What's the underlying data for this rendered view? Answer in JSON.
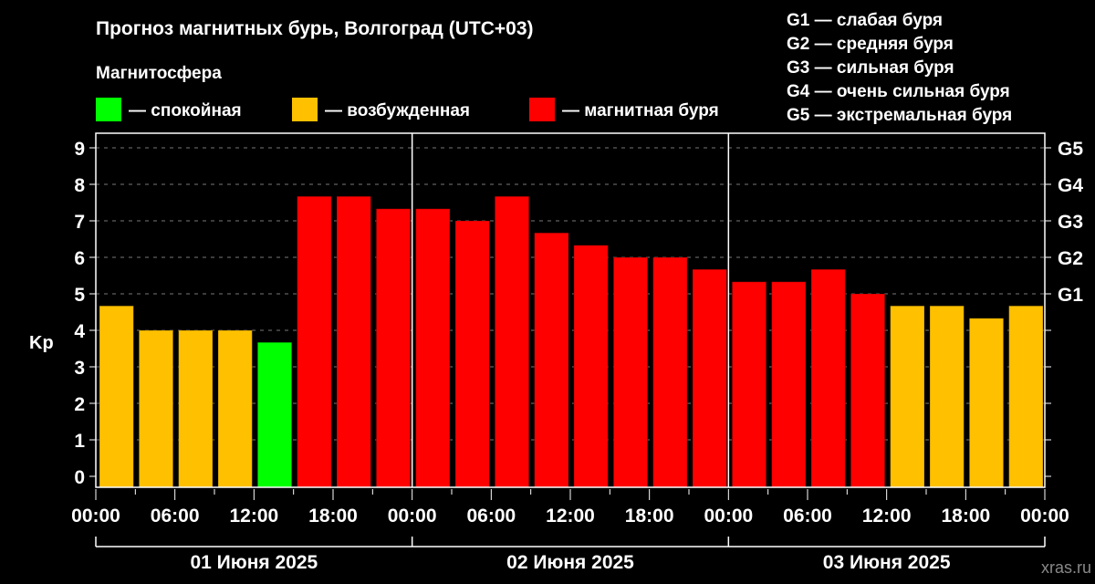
{
  "chart_data": {
    "type": "bar",
    "title": "Прогноз магнитных бурь, Волгоград (UTC+03)",
    "legend_title": "Магнитосфера",
    "legend": [
      {
        "label": "— спокойная",
        "color": "#00ff00"
      },
      {
        "label": "— возбужденная",
        "color": "#ffc000"
      },
      {
        "label": "— магнитная буря",
        "color": "#ff0000"
      }
    ],
    "g_legend": [
      "G1 — слабая буря",
      "G2 — средняя буря",
      "G3 — сильная буря",
      "G4 — очень сильная буря",
      "G5 — экстремальная буря"
    ],
    "ylabel": "Kp",
    "ylim": [
      -0.3,
      9.4
    ],
    "yticks": [
      0,
      1,
      2,
      3,
      4,
      5,
      6,
      7,
      8,
      9
    ],
    "g_ticks": [
      {
        "label": "G1",
        "value": 5
      },
      {
        "label": "G2",
        "value": 6
      },
      {
        "label": "G3",
        "value": 7
      },
      {
        "label": "G4",
        "value": 8
      },
      {
        "label": "G5",
        "value": 9
      }
    ],
    "xtick_labels": [
      "00:00",
      "06:00",
      "12:00",
      "18:00",
      "00:00",
      "06:00",
      "12:00",
      "18:00",
      "00:00",
      "06:00",
      "12:00",
      "18:00",
      "00:00"
    ],
    "days": [
      "01 Июня 2025",
      "02 Июня 2025",
      "03 Июня 2025"
    ],
    "interval_hours": 3,
    "values": [
      4.67,
      4.0,
      4.0,
      4.0,
      3.67,
      7.67,
      7.67,
      7.33,
      7.33,
      7.0,
      7.67,
      6.67,
      6.33,
      6.0,
      6.0,
      5.67,
      5.33,
      5.33,
      5.67,
      5.0,
      4.67,
      4.67,
      4.33,
      4.67
    ],
    "colors": {
      "quiet": "#00ff00",
      "active": "#ffc000",
      "storm": "#ff0000"
    },
    "grid": true,
    "watermark": "xras.ru"
  }
}
